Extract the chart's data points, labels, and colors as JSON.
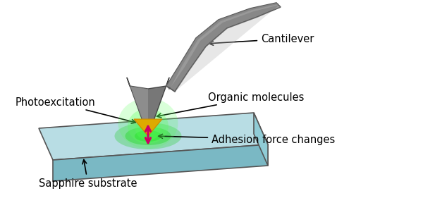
{
  "background_color": "#ffffff",
  "text_color": "#000000",
  "labels": {
    "cantilever": "Cantilever",
    "photoexcitation": "Photoexcitation",
    "organic_molecules": "Organic molecules",
    "adhesion_force": "Adhesion force changes",
    "sapphire": "Sapphire substrate"
  },
  "colors": {
    "cantilever_dark": "#555555",
    "cantilever_mid": "#888888",
    "cantilever_light": "#bbbbbb",
    "substrate_top": "#b8dde4",
    "substrate_side_front": "#7ab8c4",
    "substrate_side_right": "#90ccd6",
    "substrate_edge": "#555555",
    "green_glow1": "#00cc00",
    "green_glow2": "#55ff55",
    "yellow_tip": "#ddaa00",
    "yellow_tip_edge": "#cc8800",
    "arrow_color": "#cc0066",
    "cone_face": "#777777",
    "cone_edge": "#444444"
  }
}
